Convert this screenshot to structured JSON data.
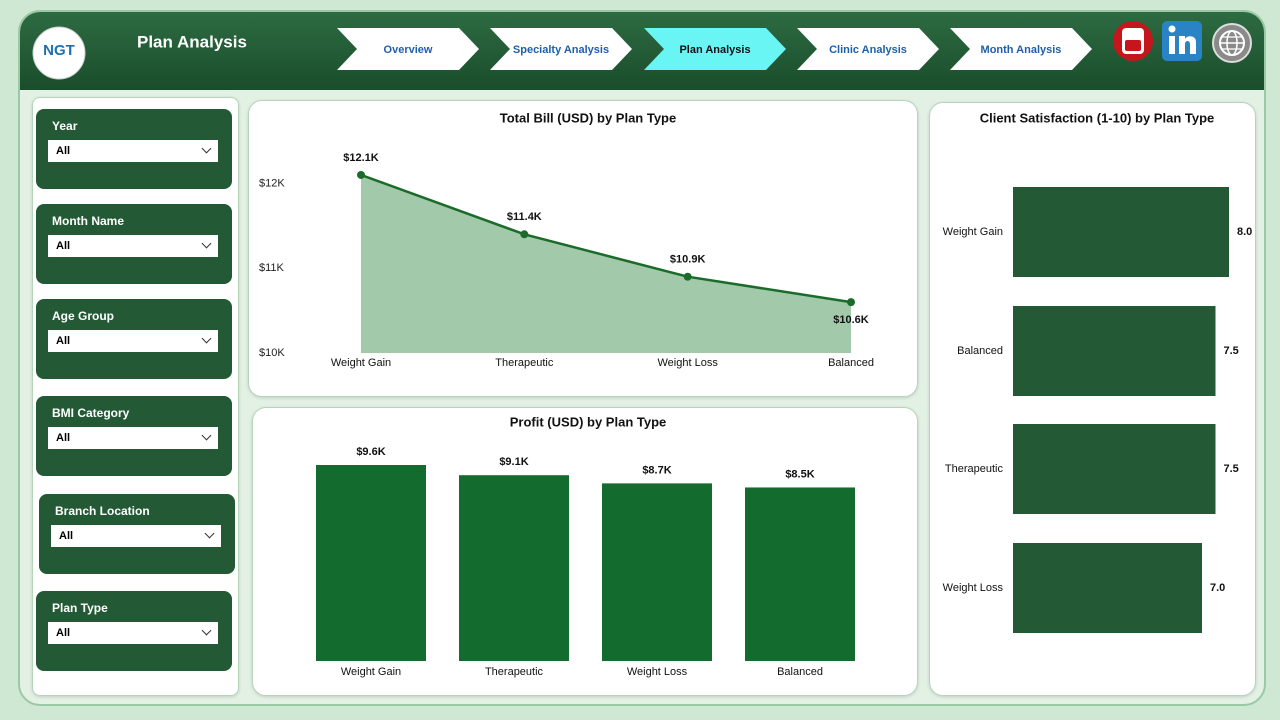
{
  "header": {
    "logo": "NGT",
    "title": "Plan Analysis"
  },
  "nav": {
    "items": [
      "Overview",
      "Specialty Analysis",
      "Plan Analysis",
      "Clinic Analysis",
      "Month Analysis"
    ],
    "active": 2
  },
  "filters": [
    {
      "label": "Year",
      "value": "All"
    },
    {
      "label": "Month Name",
      "value": "All"
    },
    {
      "label": "Age Group",
      "value": "All"
    },
    {
      "label": "BMI Category",
      "value": "All"
    },
    {
      "label": "Branch Location",
      "value": "All"
    },
    {
      "label": "Plan Type",
      "value": "All"
    }
  ],
  "chart_data": [
    {
      "type": "area",
      "title": "Total Bill (USD) by Plan Type",
      "categories": [
        "Weight Gain",
        "Therapeutic",
        "Weight Loss",
        "Balanced"
      ],
      "values": [
        12100,
        11400,
        10900,
        10600
      ],
      "value_labels": [
        "$12.1K",
        "$11.4K",
        "$10.9K",
        "$10.6K"
      ],
      "color": "#1b6b2a",
      "fill": "#a3c9ab",
      "ylim": [
        10000,
        12300
      ],
      "yticks": [
        {
          "value": 10000,
          "label": "$10K"
        },
        {
          "value": 11000,
          "label": "$11K"
        },
        {
          "value": 12000,
          "label": "$12K"
        }
      ],
      "grid": false
    },
    {
      "type": "bar",
      "title": "Profit (USD) by Plan Type",
      "categories": [
        "Weight Gain",
        "Therapeutic",
        "Weight Loss",
        "Balanced"
      ],
      "values": [
        9600,
        9100,
        8700,
        8500
      ],
      "value_labels": [
        "$9.6K",
        "$9.1K",
        "$8.7K",
        "$8.5K"
      ],
      "color": "#136b2d"
    },
    {
      "type": "barh",
      "title": "Client Satisfaction (1-10) by Plan Type",
      "categories": [
        "Weight Gain",
        "Balanced",
        "Therapeutic",
        "Weight Loss"
      ],
      "values": [
        8.0,
        7.5,
        7.5,
        7.0
      ],
      "value_labels": [
        "8.0",
        "7.5",
        "7.5",
        "7.0"
      ],
      "color": "#235a35"
    }
  ]
}
